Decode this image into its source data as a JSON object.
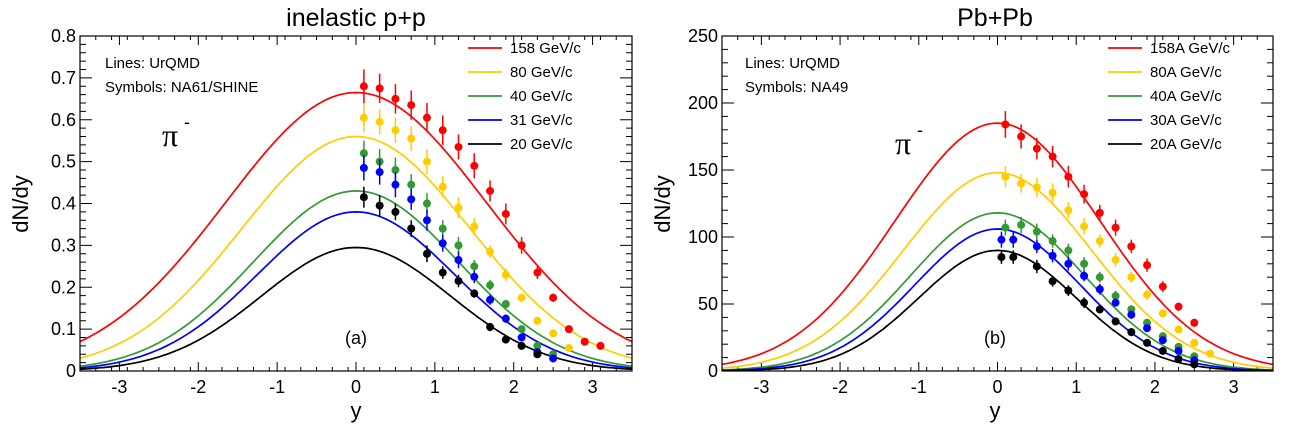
{
  "chart_data": [
    {
      "type": "line",
      "title": "inelastic p+p",
      "xlabel": "y",
      "ylabel": "dN/dy",
      "xlim": [
        -3.5,
        3.5
      ],
      "ylim": [
        0,
        0.8
      ],
      "xticks": [
        "-3",
        "-2",
        "-1",
        "0",
        "1",
        "2",
        "3"
      ],
      "yticks": [
        "0",
        "0.1",
        "0.2",
        "0.3",
        "0.4",
        "0.5",
        "0.6",
        "0.7",
        "0.8"
      ],
      "annotations": {
        "lines_note": "Lines: UrQMD",
        "symbols_note": "Symbols: NA61/SHINE",
        "particle": "π",
        "particle_sup": "-",
        "panel_label": "(a)"
      },
      "legend_position": "top-right",
      "series": [
        {
          "name": "158 GeV/c",
          "color": "#ff0000",
          "peak": 0.665,
          "width": 1.65,
          "points": [
            [
              0.1,
              0.68,
              0.04
            ],
            [
              0.3,
              0.675,
              0.035
            ],
            [
              0.5,
              0.65,
              0.035
            ],
            [
              0.7,
              0.635,
              0.035
            ],
            [
              0.9,
              0.605,
              0.035
            ],
            [
              1.1,
              0.575,
              0.035
            ],
            [
              1.3,
              0.535,
              0.03
            ],
            [
              1.5,
              0.49,
              0.03
            ],
            [
              1.7,
              0.43,
              0.025
            ],
            [
              1.9,
              0.375,
              0.025
            ],
            [
              2.1,
              0.3,
              0.02
            ],
            [
              2.3,
              0.235,
              0.015
            ],
            [
              2.5,
              0.175,
              0.01
            ],
            [
              2.7,
              0.1,
              0.008
            ],
            [
              2.9,
              0.07,
              0.006
            ],
            [
              3.1,
              0.06,
              0.005
            ]
          ]
        },
        {
          "name": "80 GeV/c",
          "color": "#ffcc00",
          "peak": 0.56,
          "width": 1.45,
          "points": [
            [
              0.1,
              0.605,
              0.035
            ],
            [
              0.3,
              0.595,
              0.03
            ],
            [
              0.5,
              0.575,
              0.03
            ],
            [
              0.7,
              0.555,
              0.03
            ],
            [
              0.9,
              0.5,
              0.03
            ],
            [
              1.1,
              0.44,
              0.025
            ],
            [
              1.3,
              0.39,
              0.025
            ],
            [
              1.5,
              0.345,
              0.02
            ],
            [
              1.7,
              0.285,
              0.015
            ],
            [
              1.9,
              0.23,
              0.015
            ],
            [
              2.1,
              0.175,
              0.01
            ],
            [
              2.3,
              0.12,
              0.008
            ],
            [
              2.5,
              0.09,
              0.006
            ],
            [
              2.7,
              0.055,
              0.005
            ]
          ]
        },
        {
          "name": "40 GeV/c",
          "color": "#339933",
          "peak": 0.43,
          "width": 1.3,
          "points": [
            [
              0.1,
              0.52,
              0.03
            ],
            [
              0.3,
              0.5,
              0.03
            ],
            [
              0.5,
              0.48,
              0.03
            ],
            [
              0.7,
              0.445,
              0.025
            ],
            [
              0.9,
              0.4,
              0.025
            ],
            [
              1.1,
              0.34,
              0.02
            ],
            [
              1.3,
              0.3,
              0.02
            ],
            [
              1.5,
              0.25,
              0.015
            ],
            [
              1.7,
              0.205,
              0.012
            ],
            [
              1.9,
              0.16,
              0.01
            ],
            [
              2.1,
              0.1,
              0.008
            ],
            [
              2.3,
              0.06,
              0.006
            ],
            [
              2.5,
              0.04,
              0.005
            ]
          ]
        },
        {
          "name": "31 GeV/c",
          "color": "#0000ff",
          "peak": 0.38,
          "width": 1.25,
          "points": [
            [
              0.1,
              0.485,
              0.03
            ],
            [
              0.3,
              0.475,
              0.03
            ],
            [
              0.5,
              0.445,
              0.03
            ],
            [
              0.7,
              0.41,
              0.025
            ],
            [
              0.9,
              0.36,
              0.025
            ],
            [
              1.1,
              0.305,
              0.02
            ],
            [
              1.3,
              0.265,
              0.02
            ],
            [
              1.5,
              0.225,
              0.015
            ],
            [
              1.7,
              0.17,
              0.012
            ],
            [
              1.9,
              0.125,
              0.01
            ],
            [
              2.1,
              0.08,
              0.008
            ],
            [
              2.3,
              0.045,
              0.006
            ],
            [
              2.5,
              0.03,
              0.005
            ]
          ]
        },
        {
          "name": "20 GeV/c",
          "color": "#000000",
          "peak": 0.295,
          "width": 1.2,
          "points": [
            [
              0.1,
              0.415,
              0.025
            ],
            [
              0.3,
              0.395,
              0.025
            ],
            [
              0.5,
              0.38,
              0.02
            ],
            [
              0.7,
              0.34,
              0.02
            ],
            [
              0.9,
              0.28,
              0.02
            ],
            [
              1.1,
              0.235,
              0.015
            ],
            [
              1.3,
              0.215,
              0.015
            ],
            [
              1.5,
              0.185,
              0.01
            ],
            [
              1.7,
              0.105,
              0.01
            ],
            [
              1.9,
              0.075,
              0.008
            ],
            [
              2.1,
              0.06,
              0.006
            ],
            [
              2.3,
              0.04,
              0.005
            ]
          ]
        }
      ]
    },
    {
      "type": "line",
      "title": "Pb+Pb",
      "xlabel": "y",
      "ylabel": "dN/dy",
      "xlim": [
        -3.5,
        3.5
      ],
      "ylim": [
        0,
        250
      ],
      "xticks": [
        "-3",
        "-2",
        "-1",
        "0",
        "1",
        "2",
        "3"
      ],
      "yticks": [
        "0",
        "50",
        "100",
        "150",
        "200",
        "250"
      ],
      "annotations": {
        "lines_note": "Lines: UrQMD",
        "symbols_note": "Symbols: NA49",
        "particle": "π",
        "particle_sup": "-",
        "panel_label": "(b)"
      },
      "legend_position": "top-right",
      "series": [
        {
          "name": "158A GeV/c",
          "color": "#ff0000",
          "peak": 185,
          "width": 1.3,
          "points": [
            [
              0.1,
              184,
              10
            ],
            [
              0.3,
              175,
              9
            ],
            [
              0.5,
              166,
              8
            ],
            [
              0.7,
              160,
              8
            ],
            [
              0.9,
              145,
              8
            ],
            [
              1.1,
              132,
              7
            ],
            [
              1.3,
              118,
              6
            ],
            [
              1.5,
              107,
              6
            ],
            [
              1.7,
              93,
              5
            ],
            [
              1.9,
              79,
              5
            ],
            [
              2.1,
              63,
              4
            ],
            [
              2.3,
              48,
              3
            ],
            [
              2.5,
              36,
              3
            ]
          ]
        },
        {
          "name": "80A GeV/c",
          "color": "#ffcc00",
          "peak": 148,
          "width": 1.2,
          "points": [
            [
              0.1,
              145,
              8
            ],
            [
              0.3,
              140,
              7
            ],
            [
              0.5,
              137,
              7
            ],
            [
              0.7,
              133,
              7
            ],
            [
              0.9,
              120,
              6
            ],
            [
              1.1,
              108,
              6
            ],
            [
              1.3,
              97,
              5
            ],
            [
              1.5,
              83,
              5
            ],
            [
              1.7,
              70,
              4
            ],
            [
              1.9,
              57,
              4
            ],
            [
              2.1,
              43,
              3
            ],
            [
              2.3,
              31,
              3
            ],
            [
              2.5,
              21,
              2
            ],
            [
              2.7,
              13,
              2
            ]
          ]
        },
        {
          "name": "40A GeV/c",
          "color": "#339933",
          "peak": 118,
          "width": 1.1,
          "points": [
            [
              0.1,
              107,
              6
            ],
            [
              0.3,
              109,
              6
            ],
            [
              0.5,
              104,
              6
            ],
            [
              0.7,
              97,
              5
            ],
            [
              0.9,
              90,
              5
            ],
            [
              1.1,
              80,
              5
            ],
            [
              1.3,
              70,
              4
            ],
            [
              1.5,
              56,
              4
            ],
            [
              1.7,
              46,
              3
            ],
            [
              1.9,
              36,
              3
            ],
            [
              2.1,
              26,
              2
            ],
            [
              2.3,
              18,
              2
            ],
            [
              2.5,
              11,
              2
            ]
          ]
        },
        {
          "name": "30A GeV/c",
          "color": "#0000ff",
          "peak": 106,
          "width": 1.05,
          "points": [
            [
              0.05,
              98,
              6
            ],
            [
              0.2,
              98,
              6
            ],
            [
              0.5,
              93,
              5
            ],
            [
              0.7,
              86,
              5
            ],
            [
              0.9,
              80,
              5
            ],
            [
              1.1,
              71,
              4
            ],
            [
              1.3,
              61,
              4
            ],
            [
              1.5,
              51,
              3
            ],
            [
              1.7,
              42,
              3
            ],
            [
              1.9,
              32,
              3
            ],
            [
              2.1,
              23,
              2
            ],
            [
              2.3,
              15,
              2
            ],
            [
              2.5,
              8,
              2
            ]
          ]
        },
        {
          "name": "20A GeV/c",
          "color": "#000000",
          "peak": 90,
          "width": 1.0,
          "points": [
            [
              0.05,
              85,
              5
            ],
            [
              0.2,
              85,
              5
            ],
            [
              0.5,
              78,
              5
            ],
            [
              0.7,
              67,
              4
            ],
            [
              0.9,
              60,
              4
            ],
            [
              1.1,
              51,
              4
            ],
            [
              1.3,
              46,
              3
            ],
            [
              1.5,
              37,
              3
            ],
            [
              1.7,
              29,
              3
            ],
            [
              1.9,
              21,
              2
            ],
            [
              2.1,
              15,
              2
            ],
            [
              2.3,
              9,
              2
            ],
            [
              2.5,
              5,
              1
            ]
          ]
        }
      ]
    }
  ]
}
